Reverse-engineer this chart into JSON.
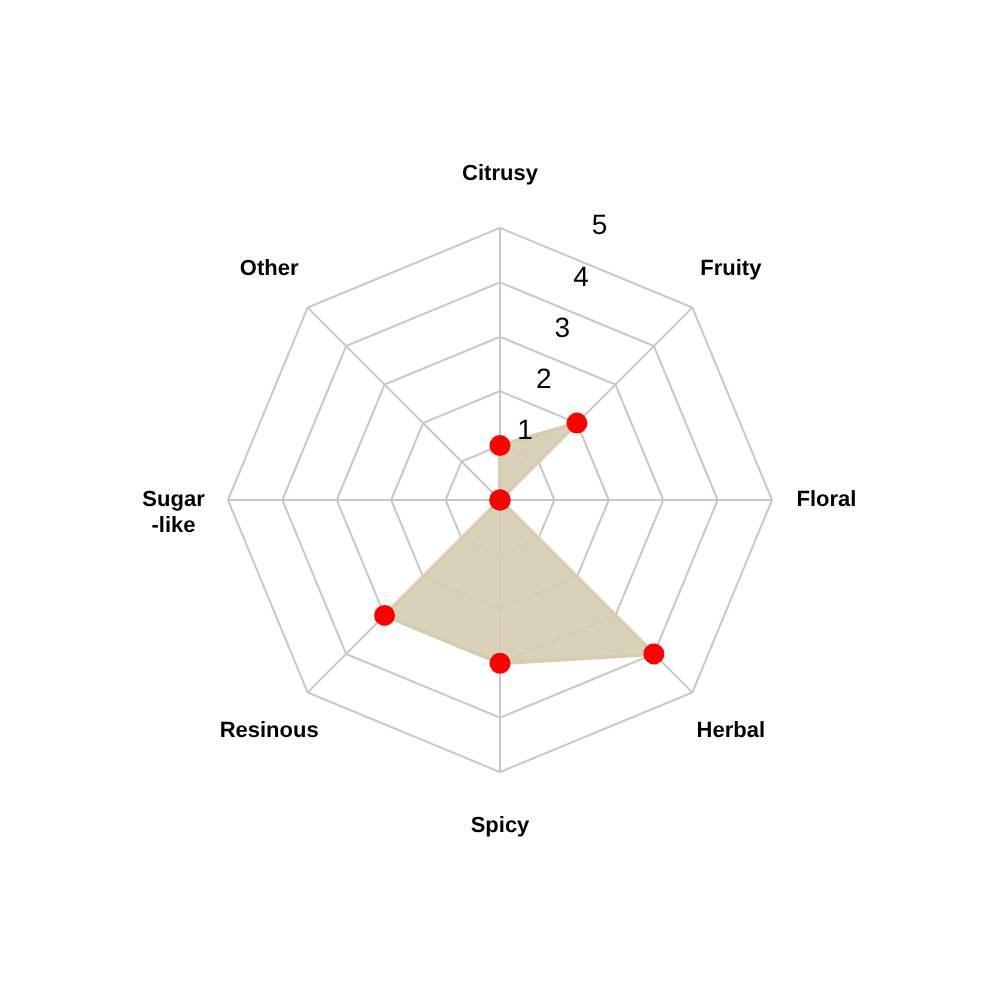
{
  "chart_data": {
    "type": "radar",
    "categories": [
      "Citrusy",
      "Fruity",
      "Floral",
      "Herbal",
      "Spicy",
      "Resinous",
      "Sugar\n-like",
      "Other"
    ],
    "series": [
      {
        "color": "#d6cdb0",
        "values": [
          1,
          2,
          0,
          4,
          3,
          3,
          0,
          0
        ]
      }
    ],
    "ylim": [
      0,
      5
    ],
    "yticks": [
      1,
      2,
      3,
      4,
      5
    ],
    "grid": true,
    "marker": "circle"
  }
}
